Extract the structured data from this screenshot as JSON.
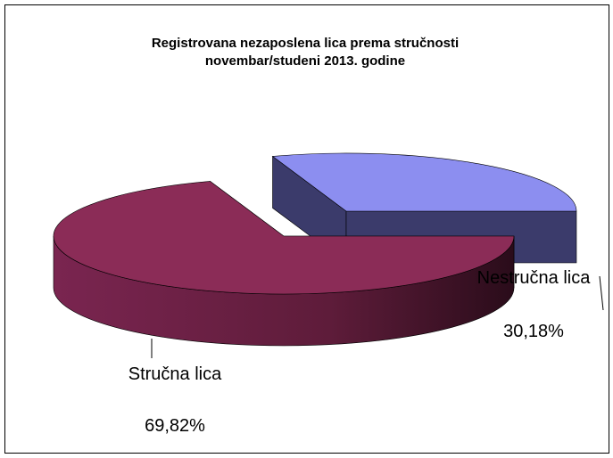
{
  "chart_data": {
    "type": "pie",
    "title": [
      "Registrovana nezaposlena lica prema stručnosti",
      "novembar/studeni  2013. godine"
    ],
    "categories": [
      "Nestručna lica",
      "Stručna lica"
    ],
    "values": [
      30.18,
      69.82
    ],
    "value_labels": [
      "30,18%",
      "69,82%"
    ],
    "colors": [
      "#8c8ef0",
      "#8b2c57"
    ],
    "side_colors": [
      "#3b3b6b",
      "#5e1c3a"
    ]
  }
}
